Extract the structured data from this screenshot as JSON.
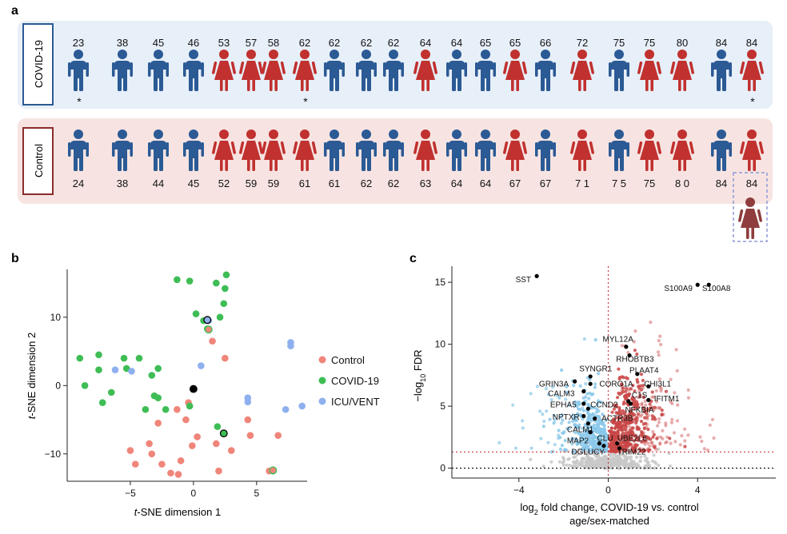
{
  "panel_letters": [
    "a",
    "b",
    "c"
  ],
  "colors": {
    "male": "#2b5a95",
    "female": "#c0312f",
    "female_matched": "#8f3d3d",
    "covid_band": "#e7eff8",
    "control_band": "#f7e4e2",
    "covid_label_border": "#2b5a95",
    "control_label_border": "#8c2b2b",
    "tsne_control": "#f0857a",
    "tsne_covid": "#3fbd55",
    "tsne_icu": "#8fb0ee",
    "volcano_down": "#8ac8ea",
    "volcano_up": "#c94646",
    "volcano_ns": "#c8c8c8"
  },
  "panel_a": {
    "covid_label": "COVID-19",
    "control_label": "Control",
    "covid": [
      {
        "age": "23",
        "sex": "M",
        "star": true
      },
      {
        "age": "38",
        "sex": "M",
        "star": false
      },
      {
        "age": "45",
        "sex": "M",
        "star": false
      },
      {
        "age": "46",
        "sex": "M",
        "star": false
      },
      {
        "age": "53",
        "sex": "F",
        "star": false
      },
      {
        "age": "57",
        "sex": "F",
        "star": false
      },
      {
        "age": "58",
        "sex": "F",
        "star": false
      },
      {
        "age": "62",
        "sex": "F",
        "star": true
      },
      {
        "age": "62",
        "sex": "M",
        "star": false
      },
      {
        "age": "62",
        "sex": "M",
        "star": false
      },
      {
        "age": "62",
        "sex": "M",
        "star": false
      },
      {
        "age": "64",
        "sex": "F",
        "star": false
      },
      {
        "age": "64",
        "sex": "M",
        "star": false
      },
      {
        "age": "65",
        "sex": "M",
        "star": false
      },
      {
        "age": "65",
        "sex": "F",
        "star": false
      },
      {
        "age": "66",
        "sex": "M",
        "star": false
      },
      {
        "age": "72",
        "sex": "F",
        "star": false
      },
      {
        "age": "75",
        "sex": "M",
        "star": false
      },
      {
        "age": "75",
        "sex": "F",
        "star": false
      },
      {
        "age": "80",
        "sex": "F",
        "star": false
      },
      {
        "age": "84",
        "sex": "M",
        "star": false
      },
      {
        "age": "84",
        "sex": "F",
        "star": true
      }
    ],
    "control": [
      {
        "age": "24",
        "sex": "M"
      },
      {
        "age": "38",
        "sex": "M"
      },
      {
        "age": "44",
        "sex": "M"
      },
      {
        "age": "45",
        "sex": "M"
      },
      {
        "age": "52",
        "sex": "F"
      },
      {
        "age": "59",
        "sex": "F"
      },
      {
        "age": "59",
        "sex": "F"
      },
      {
        "age": "61",
        "sex": "F"
      },
      {
        "age": "61",
        "sex": "M"
      },
      {
        "age": "62",
        "sex": "M"
      },
      {
        "age": "62",
        "sex": "M"
      },
      {
        "age": "63",
        "sex": "F"
      },
      {
        "age": "64",
        "sex": "M"
      },
      {
        "age": "64",
        "sex": "M"
      },
      {
        "age": "67",
        "sex": "F"
      },
      {
        "age": "67",
        "sex": "M"
      },
      {
        "age": "7 1",
        "sex": "F"
      },
      {
        "age": "7 5",
        "sex": "M"
      },
      {
        "age": "75",
        "sex": "F"
      },
      {
        "age": "8 0",
        "sex": "F"
      },
      {
        "age": "84",
        "sex": "M"
      },
      {
        "age": "84",
        "sex": "F"
      }
    ],
    "star_symbol": "*"
  },
  "chart_data": [
    {
      "type": "scatter",
      "panel": "b",
      "xlabel_italic": "t",
      "xlabel_rest": "-SNE dimension 1",
      "ylabel_italic": "t",
      "ylabel_rest": "-SNE dimension 2",
      "xlim": [
        -10,
        9
      ],
      "ylim": [
        -14,
        17
      ],
      "xticks": [
        -5,
        0,
        5
      ],
      "yticks": [
        -10,
        0,
        10
      ],
      "legend_position": "right",
      "series": [
        {
          "name": "Control",
          "color": "#f0857a",
          "points": [
            [
              -3.5,
              -8.5
            ],
            [
              -5,
              -9.5
            ],
            [
              -4.6,
              -11.5
            ],
            [
              -3.3,
              -10
            ],
            [
              -2.8,
              -5.5
            ],
            [
              -2.5,
              -11.5
            ],
            [
              -1.3,
              -3.5
            ],
            [
              -0.4,
              -2.5
            ],
            [
              -0.6,
              -5
            ],
            [
              -0.1,
              -8.8
            ],
            [
              -1,
              -11
            ],
            [
              -1.2,
              -13
            ],
            [
              0.3,
              -7.5
            ],
            [
              1.8,
              -8.5
            ],
            [
              2,
              -12.5
            ],
            [
              3,
              -9.5
            ],
            [
              4.3,
              -5
            ],
            [
              4.5,
              -7.3
            ],
            [
              6,
              -12.5
            ],
            [
              6.7,
              -7.3
            ],
            [
              1.2,
              8.2
            ],
            [
              1.5,
              6.5
            ],
            [
              2.5,
              4
            ],
            [
              -1.8,
              -12.8
            ]
          ]
        },
        {
          "name": "COVID-19",
          "color": "#3fbd55",
          "points": [
            [
              -1.3,
              15.5
            ],
            [
              -0.3,
              15.3
            ],
            [
              1.8,
              15
            ],
            [
              2.6,
              16.2
            ],
            [
              2.5,
              14.2
            ],
            [
              0.2,
              10.5
            ],
            [
              2.1,
              10
            ],
            [
              2.4,
              12
            ],
            [
              0.8,
              9.5
            ],
            [
              1.1,
              8.3
            ],
            [
              -9,
              4
            ],
            [
              -7.5,
              4.5
            ],
            [
              -7.5,
              2.3
            ],
            [
              -8.6,
              0
            ],
            [
              -6.5,
              -1
            ],
            [
              -7.2,
              -2.5
            ],
            [
              -5.5,
              4
            ],
            [
              -5.3,
              2.5
            ],
            [
              -4.3,
              4
            ],
            [
              -3.3,
              1.5
            ],
            [
              -2.8,
              2.5
            ],
            [
              -3.8,
              -3.5
            ],
            [
              -2.8,
              -1.8
            ],
            [
              -3.1,
              -1.5
            ],
            [
              -2.2,
              -3.5
            ],
            [
              -0.3,
              -3
            ],
            [
              2.4,
              -7
            ],
            [
              1.9,
              -6
            ],
            [
              6.3,
              -12.5
            ]
          ]
        },
        {
          "name": "ICU/VENT",
          "color": "#8fb0ee",
          "points": [
            [
              -6.2,
              2.3
            ],
            [
              -4.9,
              2.1
            ],
            [
              0.6,
              2.9
            ],
            [
              4.3,
              -1.8
            ],
            [
              4.3,
              -2.4
            ],
            [
              7.7,
              6.3
            ],
            [
              7.7,
              5.8
            ],
            [
              7.3,
              -3.5
            ],
            [
              8.6,
              -3
            ],
            [
              1.2,
              9.5
            ]
          ]
        }
      ],
      "highlighted": [
        {
          "x": 0,
          "y": -0.5,
          "fill": "#000000",
          "stroke": "#000000"
        },
        {
          "x": 1.1,
          "y": 9.6,
          "fill": "#8fb0ee",
          "stroke": "#000000"
        },
        {
          "x": 1.2,
          "y": 8.2,
          "fill": "#f0857a",
          "stroke": "#3fbd55"
        },
        {
          "x": 2.4,
          "y": -7,
          "fill": "#3fbd55",
          "stroke": "#000000"
        },
        {
          "x": 6.3,
          "y": -12.4,
          "fill": "#f0857a",
          "stroke": "#3fbd55"
        }
      ]
    },
    {
      "type": "scatter",
      "panel": "c",
      "xlabel_pre": "log",
      "xlabel_sub": "2",
      "xlabel_post": " fold change, COVID-19 vs. control",
      "xlabel_line2": "age/sex-matched",
      "ylabel_pre": "−log",
      "ylabel_sub": "10",
      "ylabel_post": " FDR",
      "xlim": [
        -7,
        7.5
      ],
      "ylim": [
        -0.8,
        16.3
      ],
      "xticks": [
        -4,
        0,
        4
      ],
      "yticks": [
        0,
        5,
        10,
        15
      ],
      "threshold_lines": {
        "x": 0,
        "y": 1.3,
        "y0": 0
      },
      "labeled_genes": [
        {
          "gene": "SST",
          "x": -3.2,
          "y": 15.5,
          "lx": -4.15,
          "ly": 15.0
        },
        {
          "gene": "S100A9",
          "x": 4,
          "y": 14.8,
          "lx": 2.5,
          "ly": 14.3
        },
        {
          "gene": "S100A8",
          "x": 4.5,
          "y": 14.8,
          "lx": 4.2,
          "ly": 14.3
        },
        {
          "gene": "MYL12A",
          "x": 0.8,
          "y": 9.8,
          "lx": -0.25,
          "ly": 10.2
        },
        {
          "gene": "RHOBTB3",
          "x": 0.95,
          "y": 9.1,
          "lx": 0.35,
          "ly": 8.6
        },
        {
          "gene": "PLAAT4",
          "x": 1.3,
          "y": 7.6,
          "lx": 0.95,
          "ly": 7.7
        },
        {
          "gene": "SYNGR1",
          "x": -0.8,
          "y": 7.4,
          "lx": -1.3,
          "ly": 7.8
        },
        {
          "gene": "GRIN3A",
          "x": -1.5,
          "y": 7.0,
          "lx": -3.1,
          "ly": 6.6
        },
        {
          "gene": "CORO1A",
          "x": -0.8,
          "y": 6.8,
          "lx": -0.4,
          "ly": 6.6
        },
        {
          "gene": "CHI3L1",
          "x": 1.8,
          "y": 6.6,
          "lx": 1.6,
          "ly": 6.6
        },
        {
          "gene": "CALM3",
          "x": -1.1,
          "y": 6.2,
          "lx": -2.7,
          "ly": 5.8
        },
        {
          "gene": "C1S",
          "x": 0.9,
          "y": 5.4,
          "lx": 1.05,
          "ly": 5.7
        },
        {
          "gene": "IFITM1",
          "x": 1.8,
          "y": 5.5,
          "lx": 2.05,
          "ly": 5.4
        },
        {
          "gene": "EPHA5",
          "x": -1.1,
          "y": 5.2,
          "lx": -2.6,
          "ly": 4.9
        },
        {
          "gene": "CCND2",
          "x": -0.9,
          "y": 4.8,
          "lx": -0.8,
          "ly": 4.9
        },
        {
          "gene": "NFKBIA",
          "x": 1.0,
          "y": 5.2,
          "lx": 0.75,
          "ly": 4.5
        },
        {
          "gene": "NPTXR",
          "x": -1.1,
          "y": 4.2,
          "lx": -2.5,
          "ly": 3.9
        },
        {
          "gene": "ACTR3B",
          "x": -0.6,
          "y": 4.0,
          "lx": -0.3,
          "ly": 3.8
        },
        {
          "gene": "CALM1",
          "x": -0.9,
          "y": 3.6,
          "lx": -1.85,
          "ly": 2.9
        },
        {
          "gene": "MAP2",
          "x": -0.8,
          "y": 2.9,
          "lx": -1.85,
          "ly": 2.0
        },
        {
          "gene": "CLU",
          "x": -0.4,
          "y": 2.0,
          "lx": -0.5,
          "ly": 2.2
        },
        {
          "gene": "UBE2L6",
          "x": 0.4,
          "y": 2.0,
          "lx": 0.4,
          "ly": 2.2
        },
        {
          "gene": "DGLUCY",
          "x": -0.2,
          "y": 1.8,
          "lx": -1.65,
          "ly": 1.1
        },
        {
          "gene": "TRIM22",
          "x": 0.5,
          "y": 1.6,
          "lx": 0.4,
          "ly": 1.1
        }
      ]
    }
  ]
}
